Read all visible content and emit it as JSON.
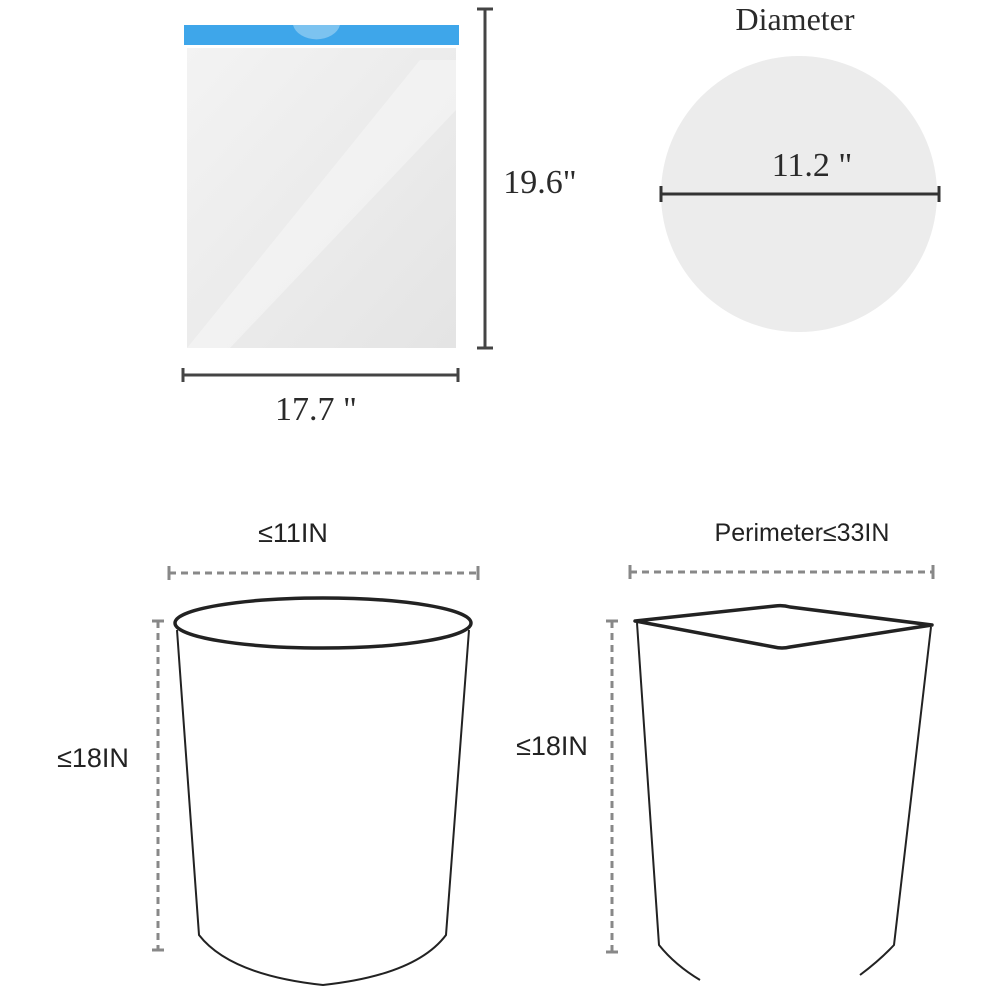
{
  "bag": {
    "width_label": "17.7 \"",
    "height_label": "19.6\"",
    "band_color": "#3ea6ea"
  },
  "bag_diameter": {
    "title": "Diameter",
    "value_label": "11.2 \""
  },
  "round_bin": {
    "width_label": "≤11IN",
    "height_label": "≤18IN"
  },
  "square_bin": {
    "perimeter_label": "Perimeter≤33IN",
    "height_label": "≤18IN"
  }
}
